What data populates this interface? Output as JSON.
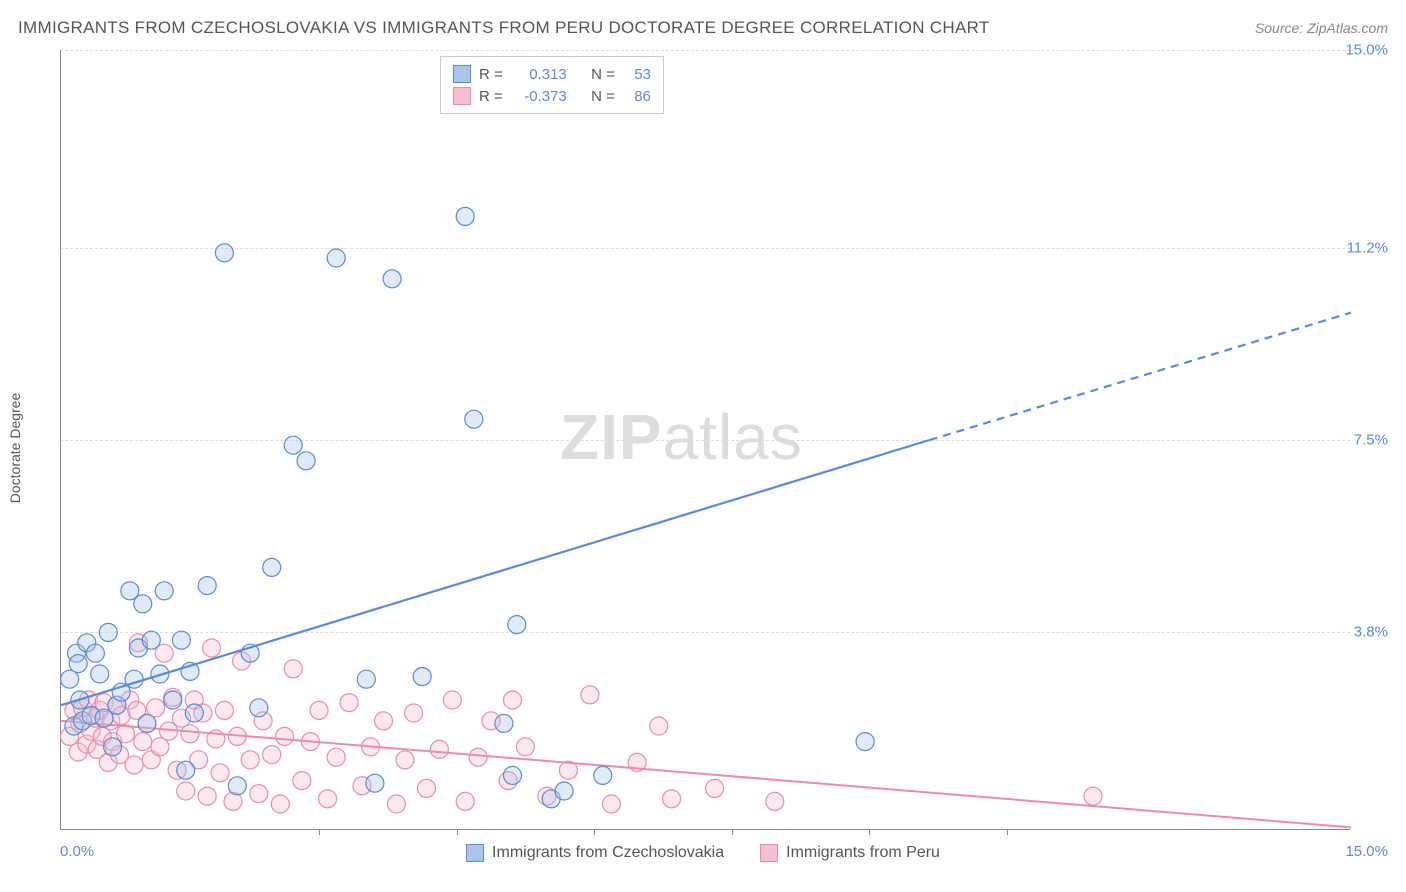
{
  "title": "IMMIGRANTS FROM CZECHOSLOVAKIA VS IMMIGRANTS FROM PERU DOCTORATE DEGREE CORRELATION CHART",
  "source": "Source: ZipAtlas.com",
  "ylabel": "Doctorate Degree",
  "watermark": {
    "prefix": "ZIP",
    "suffix": "atlas"
  },
  "chart": {
    "type": "scatter",
    "background_color": "#ffffff",
    "grid_color": "#dddddd",
    "axis_color": "#888888",
    "xlim": [
      0,
      15
    ],
    "ylim": [
      0,
      15
    ],
    "xtick_labels": {
      "left": "0.0%",
      "right": "15.0%"
    },
    "xtick_marks": [
      3.0,
      4.6,
      6.2,
      7.8,
      9.4,
      11.0
    ],
    "ytick_positions": [
      3.8,
      7.5,
      11.2,
      15.0
    ],
    "ytick_labels": [
      "3.8%",
      "7.5%",
      "11.2%",
      "15.0%"
    ],
    "marker_radius": 9,
    "marker_fill_opacity": 0.35,
    "marker_stroke_width": 1.2,
    "tick_label_color": "#5b8ad6",
    "tick_label_fontsize": 15
  },
  "series": {
    "a": {
      "label": "Immigrants from Czechoslovakia",
      "color": "#5b8ad6",
      "fill": "#a9c5ea",
      "R": "0.313",
      "N": "53",
      "regression": {
        "solid": {
          "x1": 0,
          "y1": 2.4,
          "x2": 10.1,
          "y2": 7.5
        },
        "dashed": {
          "x1": 10.1,
          "y1": 7.5,
          "x2": 15.0,
          "y2": 9.95
        },
        "width": 2.2
      },
      "points": [
        [
          0.1,
          2.9
        ],
        [
          0.15,
          2.0
        ],
        [
          0.18,
          3.4
        ],
        [
          0.2,
          3.2
        ],
        [
          0.22,
          2.5
        ],
        [
          0.25,
          2.1
        ],
        [
          0.3,
          3.6
        ],
        [
          0.35,
          2.2
        ],
        [
          0.4,
          3.4
        ],
        [
          0.45,
          3.0
        ],
        [
          0.5,
          2.15
        ],
        [
          0.55,
          3.8
        ],
        [
          0.6,
          1.6
        ],
        [
          0.65,
          2.4
        ],
        [
          0.7,
          2.65
        ],
        [
          0.8,
          4.6
        ],
        [
          0.85,
          2.9
        ],
        [
          0.9,
          3.5
        ],
        [
          0.95,
          4.35
        ],
        [
          1.0,
          2.05
        ],
        [
          1.05,
          3.65
        ],
        [
          1.15,
          3.0
        ],
        [
          1.2,
          4.6
        ],
        [
          1.3,
          2.5
        ],
        [
          1.4,
          3.65
        ],
        [
          1.45,
          1.15
        ],
        [
          1.5,
          3.05
        ],
        [
          1.55,
          2.25
        ],
        [
          1.7,
          4.7
        ],
        [
          1.9,
          11.1
        ],
        [
          2.05,
          0.85
        ],
        [
          2.2,
          3.4
        ],
        [
          2.3,
          2.35
        ],
        [
          2.45,
          5.05
        ],
        [
          2.7,
          7.4
        ],
        [
          2.85,
          7.1
        ],
        [
          3.2,
          11.0
        ],
        [
          3.55,
          2.9
        ],
        [
          3.65,
          0.9
        ],
        [
          3.85,
          10.6
        ],
        [
          4.2,
          2.95
        ],
        [
          4.7,
          11.8
        ],
        [
          4.8,
          7.9
        ],
        [
          5.15,
          2.05
        ],
        [
          5.25,
          1.05
        ],
        [
          5.3,
          3.95
        ],
        [
          5.7,
          0.6
        ],
        [
          5.85,
          0.75
        ],
        [
          6.3,
          1.05
        ],
        [
          9.35,
          1.7
        ]
      ]
    },
    "b": {
      "label": "Immigrants from Peru",
      "color": "#e98daa",
      "fill": "#f4c0d0",
      "R": "-0.373",
      "N": "86",
      "regression": {
        "solid": {
          "x1": 0,
          "y1": 2.1,
          "x2": 15.0,
          "y2": 0.05
        },
        "dashed": null,
        "width": 2.0
      },
      "points": [
        [
          0.1,
          1.8
        ],
        [
          0.15,
          2.3
        ],
        [
          0.2,
          1.5
        ],
        [
          0.22,
          2.05
        ],
        [
          0.25,
          2.35
        ],
        [
          0.3,
          1.65
        ],
        [
          0.32,
          2.5
        ],
        [
          0.35,
          1.9
        ],
        [
          0.4,
          2.15
        ],
        [
          0.42,
          1.55
        ],
        [
          0.45,
          2.3
        ],
        [
          0.48,
          1.8
        ],
        [
          0.5,
          2.45
        ],
        [
          0.55,
          1.3
        ],
        [
          0.58,
          2.1
        ],
        [
          0.6,
          1.7
        ],
        [
          0.65,
          2.4
        ],
        [
          0.68,
          1.45
        ],
        [
          0.7,
          2.2
        ],
        [
          0.75,
          1.85
        ],
        [
          0.8,
          2.5
        ],
        [
          0.85,
          1.25
        ],
        [
          0.88,
          2.3
        ],
        [
          0.9,
          3.6
        ],
        [
          0.95,
          1.7
        ],
        [
          1.0,
          2.05
        ],
        [
          1.05,
          1.35
        ],
        [
          1.1,
          2.35
        ],
        [
          1.15,
          1.6
        ],
        [
          1.2,
          3.4
        ],
        [
          1.25,
          1.9
        ],
        [
          1.3,
          2.55
        ],
        [
          1.35,
          1.15
        ],
        [
          1.4,
          2.15
        ],
        [
          1.45,
          0.75
        ],
        [
          1.5,
          1.85
        ],
        [
          1.55,
          2.5
        ],
        [
          1.6,
          1.35
        ],
        [
          1.65,
          2.25
        ],
        [
          1.7,
          0.65
        ],
        [
          1.75,
          3.5
        ],
        [
          1.8,
          1.75
        ],
        [
          1.85,
          1.1
        ],
        [
          1.9,
          2.3
        ],
        [
          2.0,
          0.55
        ],
        [
          2.05,
          1.8
        ],
        [
          2.1,
          3.25
        ],
        [
          2.2,
          1.35
        ],
        [
          2.3,
          0.7
        ],
        [
          2.35,
          2.1
        ],
        [
          2.45,
          1.45
        ],
        [
          2.55,
          0.5
        ],
        [
          2.6,
          1.8
        ],
        [
          2.7,
          3.1
        ],
        [
          2.8,
          0.95
        ],
        [
          2.9,
          1.7
        ],
        [
          3.0,
          2.3
        ],
        [
          3.1,
          0.6
        ],
        [
          3.2,
          1.4
        ],
        [
          3.35,
          2.45
        ],
        [
          3.5,
          0.85
        ],
        [
          3.6,
          1.6
        ],
        [
          3.75,
          2.1
        ],
        [
          3.9,
          0.5
        ],
        [
          4.0,
          1.35
        ],
        [
          4.1,
          2.25
        ],
        [
          4.25,
          0.8
        ],
        [
          4.4,
          1.55
        ],
        [
          4.55,
          2.5
        ],
        [
          4.7,
          0.55
        ],
        [
          4.85,
          1.4
        ],
        [
          5.0,
          2.1
        ],
        [
          5.2,
          0.95
        ],
        [
          5.25,
          2.5
        ],
        [
          5.4,
          1.6
        ],
        [
          5.65,
          0.65
        ],
        [
          5.9,
          1.15
        ],
        [
          6.15,
          2.6
        ],
        [
          6.4,
          0.5
        ],
        [
          6.7,
          1.3
        ],
        [
          6.95,
          2.0
        ],
        [
          7.1,
          0.6
        ],
        [
          7.6,
          0.8
        ],
        [
          8.3,
          0.55
        ],
        [
          12.0,
          0.65
        ]
      ]
    }
  },
  "legend_top": {
    "r_label": "R =",
    "n_label": "N ="
  }
}
